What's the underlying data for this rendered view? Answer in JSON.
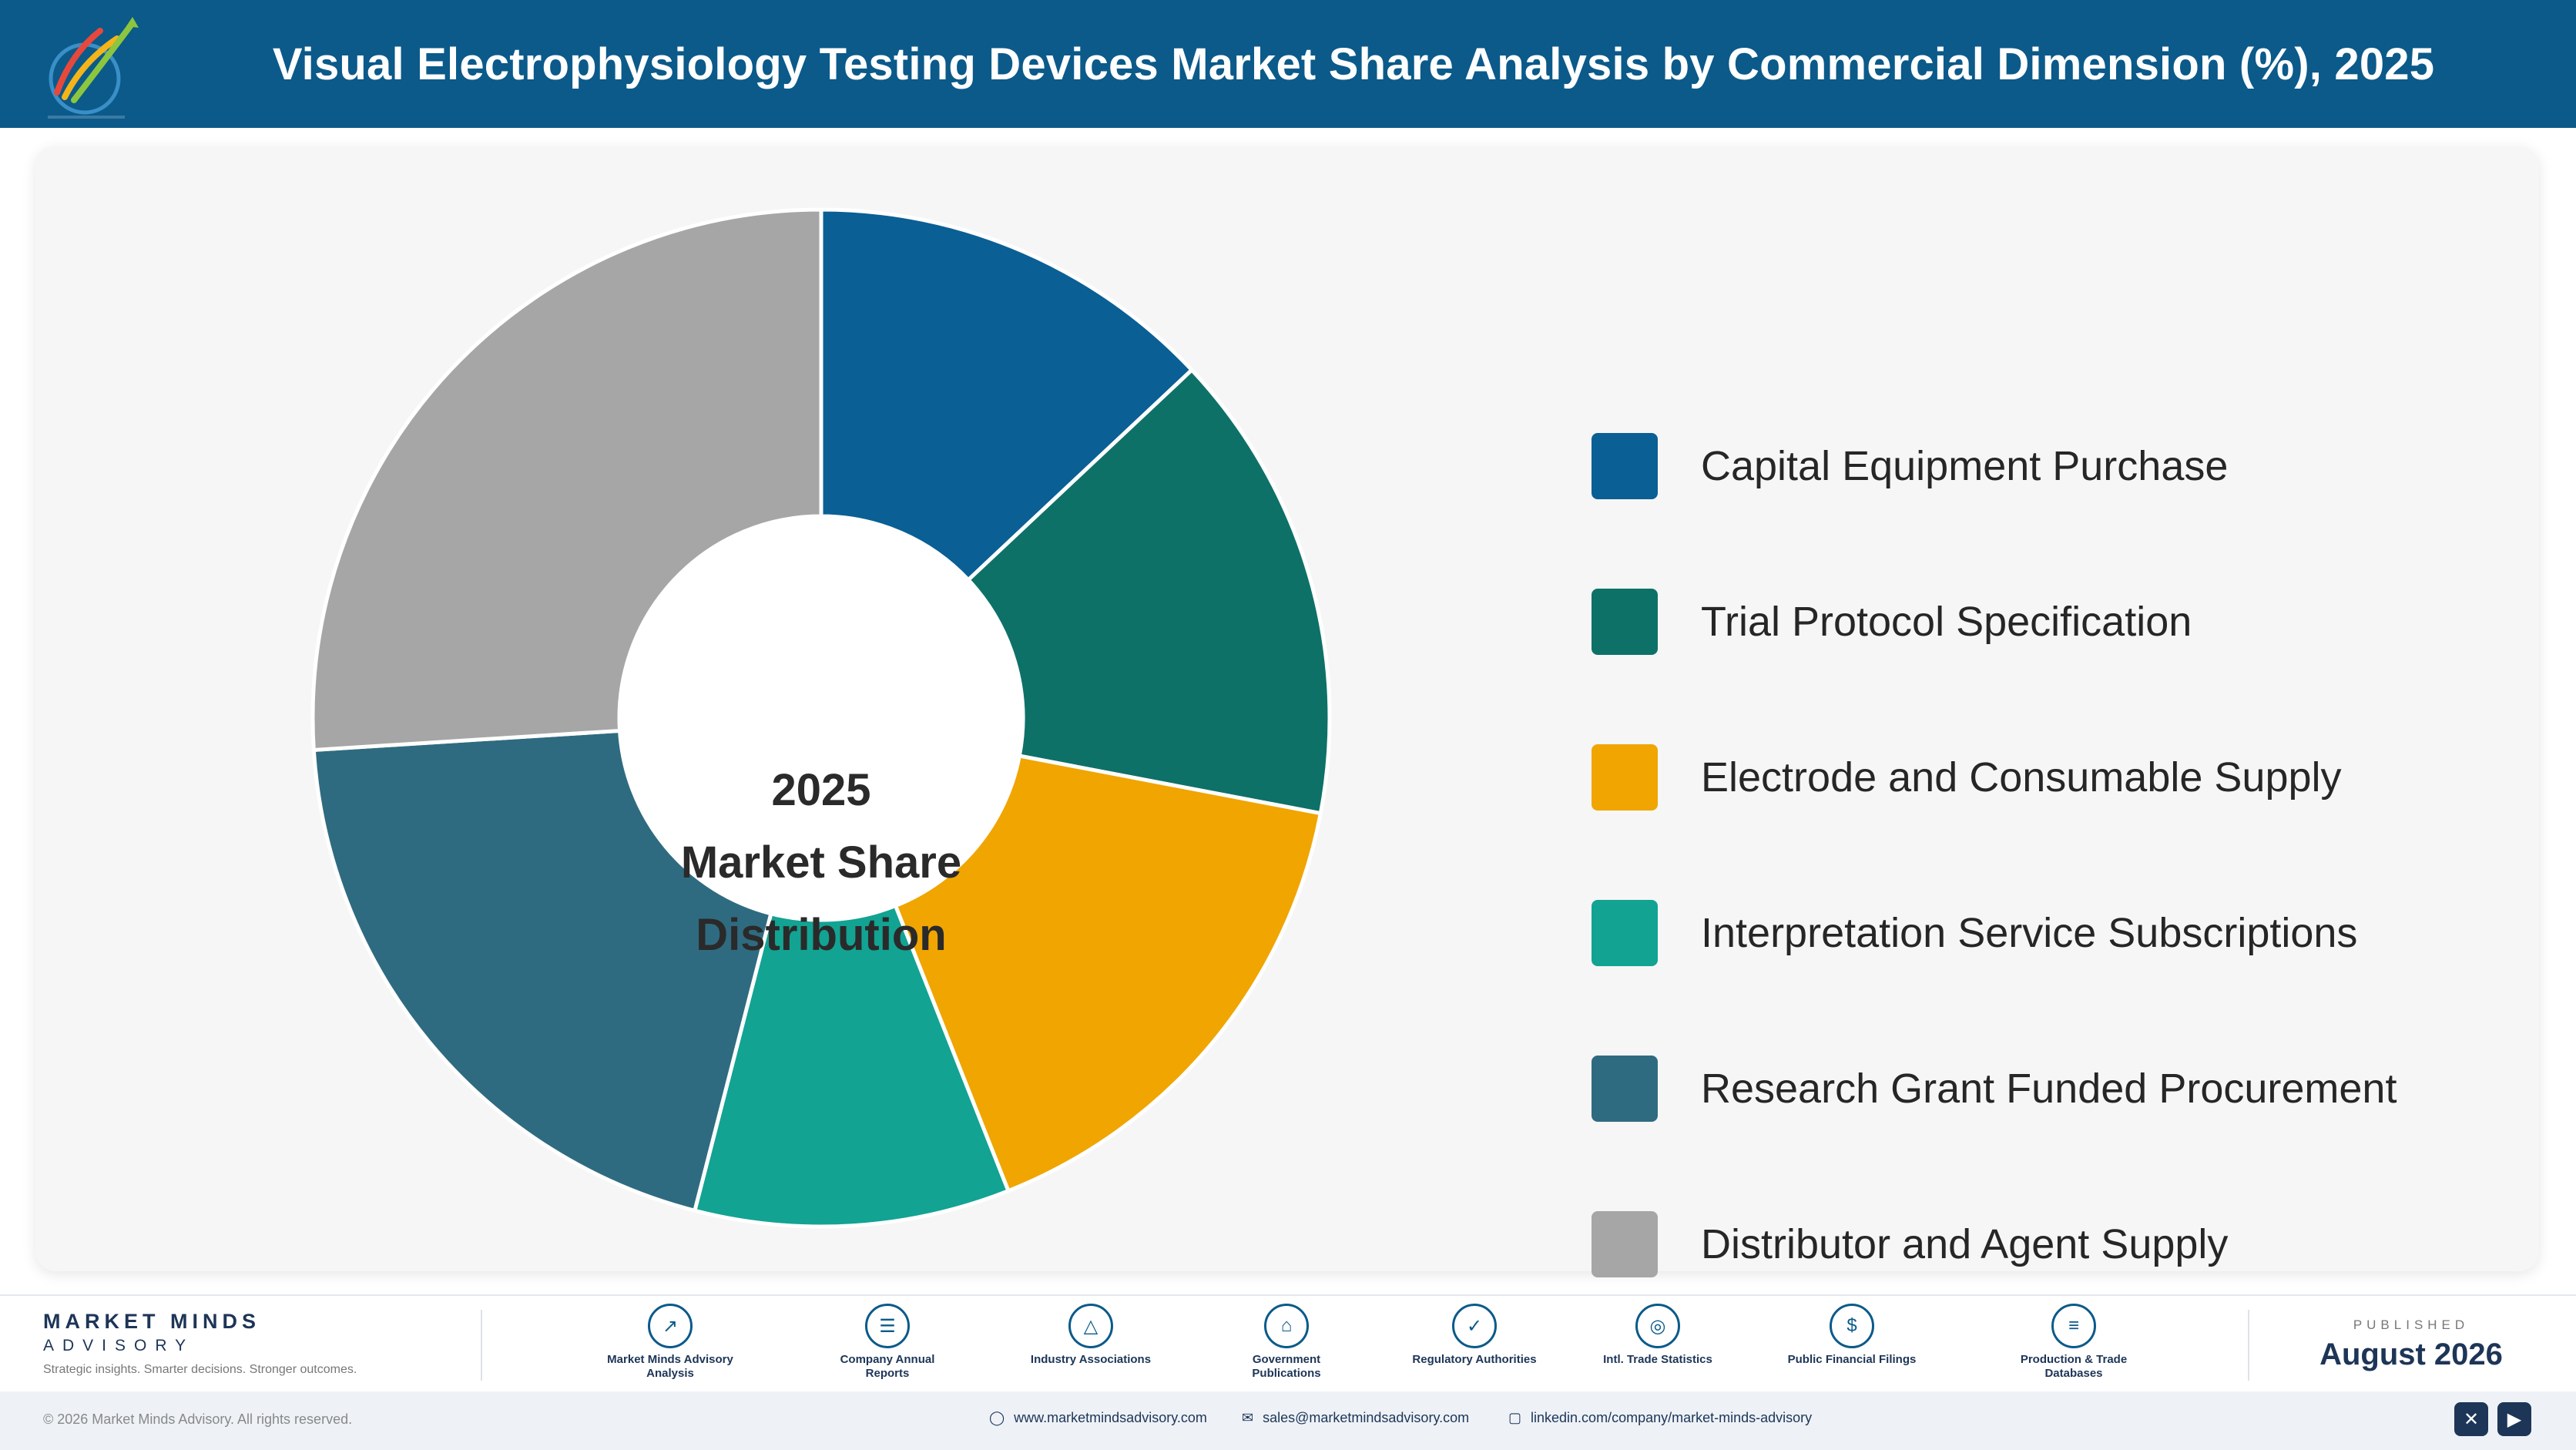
{
  "header": {
    "title": "Visual Electrophysiology Testing Devices Market Share Analysis by Commercial Dimension (%), 2025"
  },
  "chart_data": {
    "type": "pie",
    "variant": "donut",
    "center_label": [
      "2025",
      "Market Share",
      "Distribution"
    ],
    "categories": [
      "Capital Equipment Purchase",
      "Trial Protocol Specification",
      "Electrode and Consumable Supply",
      "Interpretation Service Subscriptions",
      "Research Grant Funded Procurement",
      "Distributor and Agent Supply"
    ],
    "values": [
      13,
      15,
      16,
      10,
      20,
      26
    ],
    "colors": [
      "#0a5f95",
      "#0e7168",
      "#f0a501",
      "#12a393",
      "#2f6b80",
      "#a6a6a6"
    ],
    "legend": "right"
  },
  "footer": {
    "brand_name": "MARKET MINDS",
    "brand_sub": "ADVISORY",
    "brand_tagline": "Strategic insights. Smarter decisions. Stronger outcomes.",
    "sources": [
      {
        "icon": "trend-chart-icon",
        "label": "Market Minds Advisory Analysis"
      },
      {
        "icon": "document-icon",
        "label": "Company Annual Reports"
      },
      {
        "icon": "network-icon",
        "label": "Industry Associations"
      },
      {
        "icon": "government-building-icon",
        "label": "Government Publications"
      },
      {
        "icon": "shield-check-icon",
        "label": "Regulatory Authorities"
      },
      {
        "icon": "globe-icon",
        "label": "Intl. Trade Statistics"
      },
      {
        "icon": "dollar-coin-icon",
        "label": "Public Financial Filings"
      },
      {
        "icon": "database-icon",
        "label": "Production & Trade Databases"
      }
    ],
    "published_label": "PUBLISHED",
    "published_date": "August 2026"
  },
  "bottom_bar": {
    "copyright": "© 2026 Market Minds Advisory. All rights reserved.",
    "website": "www.marketmindsadvisory.com",
    "email": "sales@marketmindsadvisory.com",
    "linkedin": "linkedin.com/company/market-minds-advisory"
  }
}
